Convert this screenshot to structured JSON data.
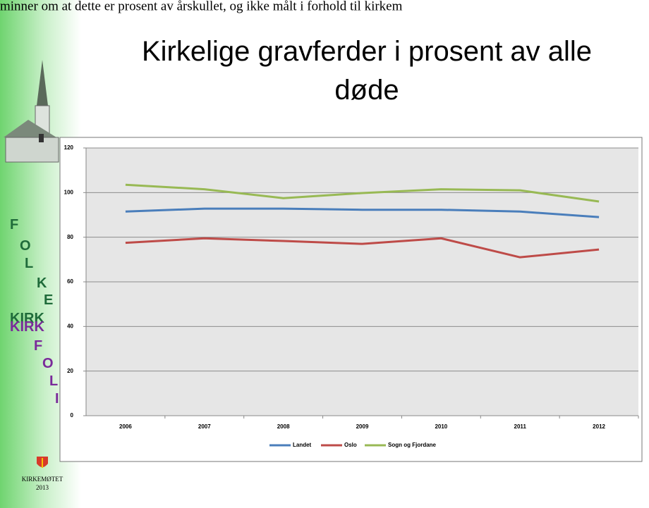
{
  "header": {
    "note": "minner om at dette er prosent av årskullet, og ikke målt i forhold til kirkem"
  },
  "sidebar": {
    "green_letters": [
      "F",
      "O",
      "L",
      "K",
      "E"
    ],
    "green_word": "KIRK",
    "purple_word": "KIRK",
    "purple_letters": [
      "F",
      "O",
      "L",
      "I"
    ],
    "logo_name": "KIRKEMØTET",
    "logo_year": "2013"
  },
  "chart_data": {
    "type": "line",
    "title": "Kirkelige gravferder i prosent av alle døde",
    "categories": [
      "2006",
      "2007",
      "2008",
      "2009",
      "2010",
      "2011",
      "2012"
    ],
    "series": [
      {
        "name": "Landet",
        "color": "#4a7ebb",
        "values": [
          91.5,
          92.8,
          92.8,
          92.3,
          92.3,
          91.5,
          89
        ]
      },
      {
        "name": "Oslo",
        "color": "#be4b48",
        "values": [
          77.5,
          79.5,
          78.3,
          77,
          79.5,
          71,
          74.5
        ]
      },
      {
        "name": "Sogn og Fjordane",
        "color": "#98b954",
        "values": [
          103.5,
          101.5,
          97.5,
          99.8,
          101.5,
          101,
          96
        ]
      }
    ],
    "ylim": [
      0,
      120
    ],
    "yticks": [
      0,
      20,
      40,
      60,
      80,
      100,
      120
    ],
    "grid": true,
    "legend": "bottom"
  }
}
